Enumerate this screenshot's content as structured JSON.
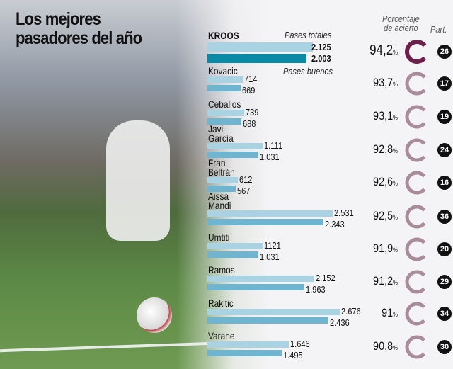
{
  "title_line1": "Los mejores",
  "title_line2": "pasadores del año",
  "chart_data": {
    "type": "bar",
    "legend": {
      "total": "Pases totales",
      "good": "Pases buenos",
      "accuracy": "Porcentaje de acierto",
      "accuracy_line1": "Porcentaje",
      "accuracy_line2": "de acierto",
      "matches": "Part."
    },
    "colors": {
      "total": "#a9d3e3",
      "good": "#6fb5cf",
      "highlight_good": "#0b8aa6",
      "ring_highlight": "#6b1f4a",
      "ring": "#a88c99"
    },
    "players": [
      {
        "name": "KROOS",
        "total": 2125,
        "good": 2003,
        "total_label": "2.125",
        "good_label": "2.003",
        "pct": 94.2,
        "pct_label": "94,2",
        "matches": "26",
        "highlight": true
      },
      {
        "name": "Kovacic",
        "total": 714,
        "good": 669,
        "total_label": "714",
        "good_label": "669",
        "pct": 93.7,
        "pct_label": "93,7",
        "matches": "17"
      },
      {
        "name": "Ceballos",
        "total": 739,
        "good": 688,
        "total_label": "739",
        "good_label": "688",
        "pct": 93.1,
        "pct_label": "93,1",
        "matches": "19"
      },
      {
        "name": "Javi\nGarcía",
        "total": 1111,
        "good": 1031,
        "total_label": "1.111",
        "good_label": "1.031",
        "pct": 92.8,
        "pct_label": "92,8",
        "matches": "24"
      },
      {
        "name": "Fran\nBeltrán",
        "total": 612,
        "good": 567,
        "total_label": "612",
        "good_label": "567",
        "pct": 92.6,
        "pct_label": "92,6",
        "matches": "16"
      },
      {
        "name": "Aissa\nMandi",
        "total": 2531,
        "good": 2343,
        "total_label": "2.531",
        "good_label": "2.343",
        "pct": 92.5,
        "pct_label": "92,5",
        "matches": "36"
      },
      {
        "name": "Umtiti",
        "total": 1121,
        "good": 1031,
        "total_label": "1121",
        "good_label": "1.031",
        "pct": 91.9,
        "pct_label": "91,9",
        "matches": "20"
      },
      {
        "name": "Ramos",
        "total": 2152,
        "good": 1963,
        "total_label": "2.152",
        "good_label": "1.963",
        "pct": 91.2,
        "pct_label": "91,2",
        "matches": "29"
      },
      {
        "name": "Rakitic",
        "total": 2676,
        "good": 2436,
        "total_label": "2.676",
        "good_label": "2.436",
        "pct": 91,
        "pct_label": "91",
        "matches": "34"
      },
      {
        "name": "Varane",
        "total": 1646,
        "good": 1495,
        "total_label": "1.646",
        "good_label": "1.495",
        "pct": 90.8,
        "pct_label": "90,8",
        "matches": "30"
      }
    ]
  }
}
